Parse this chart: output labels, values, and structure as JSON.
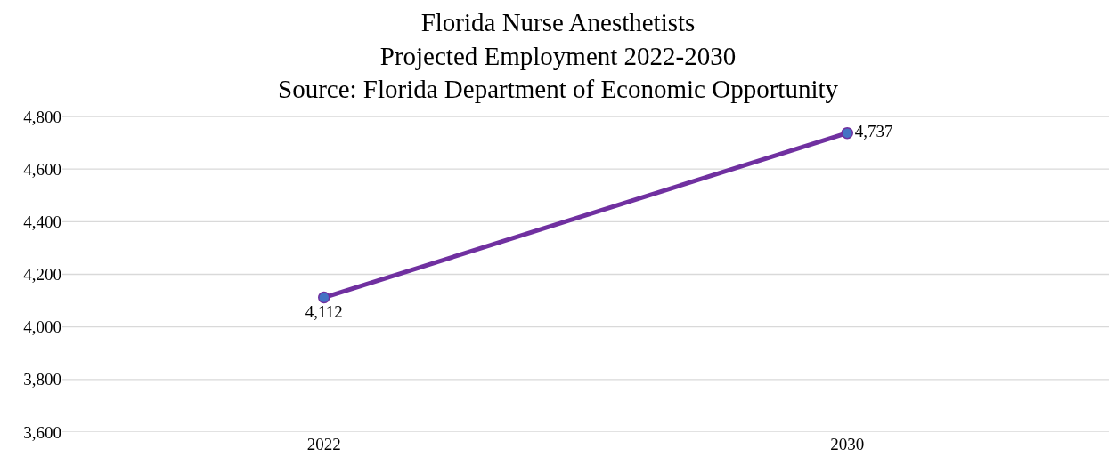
{
  "chart_data": {
    "type": "line",
    "title": "Florida Nurse Anesthetists\nProjected Employment 2022-2030\nSource: Florida Department of Economic Opportunity",
    "categories": [
      "2022",
      "2030"
    ],
    "series": [
      {
        "color": "#7030a0",
        "values": [
          4112,
          4737
        ],
        "value_labels": [
          "4,112",
          "4,737"
        ]
      }
    ],
    "ylim": [
      3600,
      4800
    ],
    "yticks": [
      {
        "value": 3600,
        "label": "3,600"
      },
      {
        "value": 3800,
        "label": "3,800"
      },
      {
        "value": 4000,
        "label": "4,000"
      },
      {
        "value": 4200,
        "label": "4,200"
      },
      {
        "value": 4400,
        "label": "4,400"
      },
      {
        "value": 4600,
        "label": "4,600"
      },
      {
        "value": 4800,
        "label": "4,800"
      }
    ],
    "grid": "y",
    "marker": "circle",
    "line_style": "solid"
  }
}
